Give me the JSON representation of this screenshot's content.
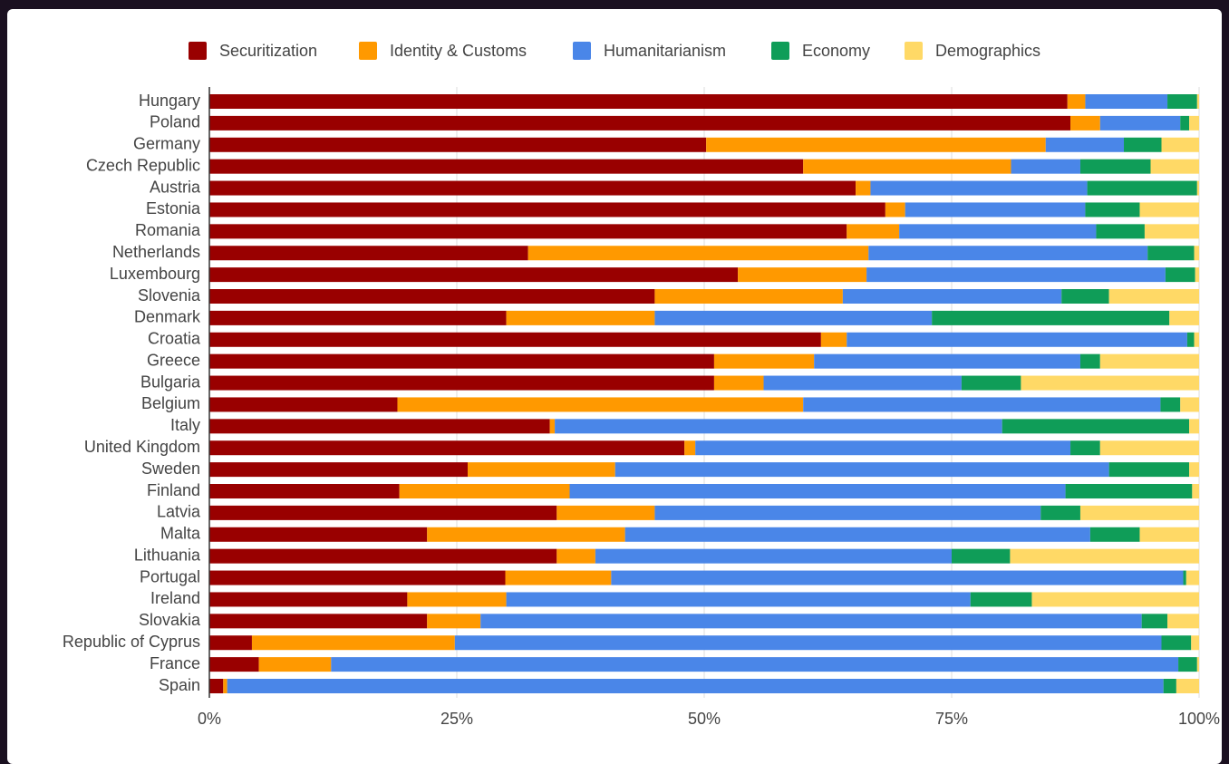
{
  "chart_data": {
    "type": "stacked-barh",
    "categories": [
      "Hungary",
      "Poland",
      "Germany",
      "Czech Republic",
      "Austria",
      "Estonia",
      "Romania",
      "Netherlands",
      "Luxembourg",
      "Slovenia",
      "Denmark",
      "Croatia",
      "Greece",
      "Bulgaria",
      "Belgium",
      "Italy",
      "United Kingdom",
      "Sweden",
      "Finland",
      "Latvia",
      "Malta",
      "Lithuania",
      "Portugal",
      "Ireland",
      "Slovakia",
      "Republic of Cyprus",
      "France",
      "Spain"
    ],
    "series": [
      {
        "name": "Securitization",
        "color": "#990000",
        "values": [
          86.7,
          87.0,
          50.2,
          60.0,
          65.3,
          68.3,
          64.4,
          32.2,
          53.4,
          45.0,
          30.0,
          61.8,
          51.0,
          51.0,
          19.0,
          34.4,
          48.0,
          26.1,
          19.2,
          35.1,
          22.0,
          35.1,
          29.9,
          20.0,
          22.0,
          4.3,
          5.0,
          1.4
        ]
      },
      {
        "name": "Identity & Customs",
        "color": "#ff9900",
        "values": [
          1.8,
          3.0,
          34.3,
          21.0,
          1.5,
          2.0,
          5.3,
          34.4,
          13.0,
          19.0,
          15.0,
          2.6,
          10.1,
          5.0,
          41.0,
          0.5,
          1.1,
          14.9,
          17.2,
          9.9,
          20.0,
          3.9,
          10.7,
          10.0,
          5.4,
          20.5,
          7.3,
          0.4
        ]
      },
      {
        "name": "Humanitarianism",
        "color": "#4a86e8",
        "values": [
          8.3,
          8.1,
          7.9,
          7.0,
          21.9,
          18.2,
          19.9,
          28.2,
          30.2,
          22.1,
          28.0,
          34.4,
          26.9,
          20.0,
          36.1,
          45.2,
          37.9,
          49.9,
          50.1,
          39.0,
          47.0,
          36.0,
          57.8,
          46.9,
          66.8,
          71.4,
          85.6,
          94.6
        ]
      },
      {
        "name": "Economy",
        "color": "#0f9d58",
        "values": [
          3.0,
          0.9,
          3.8,
          7.1,
          11.1,
          5.5,
          4.9,
          4.7,
          3.0,
          4.8,
          24.0,
          0.7,
          2.0,
          6.0,
          2.0,
          18.9,
          3.0,
          8.1,
          12.8,
          4.0,
          5.0,
          5.9,
          0.3,
          6.2,
          2.6,
          3.0,
          1.9,
          1.3
        ]
      },
      {
        "name": "Demographics",
        "color": "#ffd966",
        "values": [
          0.2,
          1.0,
          3.8,
          4.9,
          0.2,
          6.0,
          5.5,
          0.5,
          0.4,
          9.1,
          3.0,
          0.5,
          10.0,
          18.0,
          1.9,
          1.0,
          10.0,
          1.0,
          0.7,
          12.0,
          6.0,
          19.1,
          1.3,
          16.9,
          3.2,
          0.8,
          0.2,
          2.3
        ]
      }
    ],
    "xlim": [
      0,
      100
    ],
    "xticks": [
      {
        "value": 0,
        "label": "0%"
      },
      {
        "value": 25,
        "label": "25%"
      },
      {
        "value": 50,
        "label": "50%"
      },
      {
        "value": 75,
        "label": "75%"
      },
      {
        "value": 100,
        "label": "100%"
      }
    ],
    "grid": true,
    "legend": "top"
  }
}
